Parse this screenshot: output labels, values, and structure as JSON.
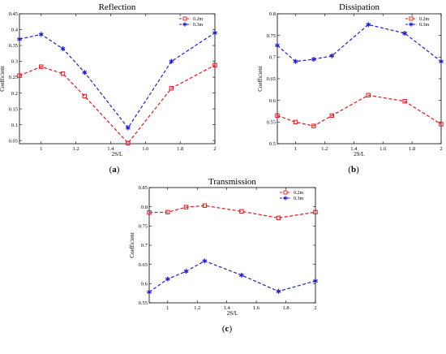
{
  "chart_data": [
    {
      "type": "line",
      "panel_label": "a",
      "title": "Reflection",
      "xlabel": "2S/L",
      "ylabel": "Coefficient",
      "xlim": [
        0.875,
        2.0
      ],
      "ylim": [
        0.04,
        0.45
      ],
      "xticks": [
        1,
        1.2,
        1.4,
        1.6,
        1.8,
        2
      ],
      "xtick_labels": [
        "1",
        "1.2",
        "1.4",
        "1.6",
        "1.8",
        "2"
      ],
      "yticks": [
        0.05,
        0.1,
        0.15,
        0.2,
        0.25,
        0.3,
        0.35,
        0.4,
        0.45
      ],
      "ytick_labels": [
        "0.05",
        "0.1",
        "0.15",
        "0.2",
        "0.25",
        "0.3",
        "0.35",
        "0.4",
        "0.45"
      ],
      "legend_position": "top-right",
      "grid": false,
      "series": [
        {
          "name": "0.2m",
          "color": "#e8141b",
          "marker": "square",
          "x": [
            0.875,
            1.0,
            1.125,
            1.25,
            1.5,
            1.75,
            2.0
          ],
          "y": [
            0.255,
            0.283,
            0.261,
            0.19,
            0.042,
            0.215,
            0.288
          ]
        },
        {
          "name": "0.3m",
          "color": "#1f1fd6",
          "marker": "star",
          "x": [
            0.875,
            1.0,
            1.125,
            1.25,
            1.5,
            1.75,
            2.0
          ],
          "y": [
            0.37,
            0.385,
            0.34,
            0.265,
            0.09,
            0.3,
            0.39
          ]
        }
      ]
    },
    {
      "type": "line",
      "panel_label": "b",
      "title": "Dissipation",
      "xlabel": "2S/L",
      "ylabel": "Coefficient",
      "xlim": [
        0.875,
        2.0
      ],
      "ylim": [
        0.5,
        0.8
      ],
      "xticks": [
        1,
        1.2,
        1.4,
        1.6,
        1.8,
        2
      ],
      "xtick_labels": [
        "1",
        "1.2",
        "1.4",
        "1.6",
        "1.8",
        "2"
      ],
      "yticks": [
        0.5,
        0.55,
        0.6,
        0.65,
        0.7,
        0.75,
        0.8
      ],
      "ytick_labels": [
        "0.5",
        "0.55",
        "0.6",
        "0.65",
        "0.7",
        "0.75",
        "0.8"
      ],
      "legend_position": "top-right",
      "grid": false,
      "series": [
        {
          "name": "0.2m",
          "color": "#e8141b",
          "marker": "square",
          "x": [
            0.875,
            1.0,
            1.125,
            1.25,
            1.5,
            1.75,
            2.0
          ],
          "y": [
            0.565,
            0.55,
            0.541,
            0.565,
            0.612,
            0.598,
            0.545
          ]
        },
        {
          "name": "0.3m",
          "color": "#1f1fd6",
          "marker": "star",
          "x": [
            0.875,
            1.0,
            1.125,
            1.25,
            1.5,
            1.75,
            2.0
          ],
          "y": [
            0.727,
            0.69,
            0.695,
            0.703,
            0.775,
            0.755,
            0.69
          ]
        }
      ]
    },
    {
      "type": "line",
      "panel_label": "c",
      "title": "Transmission",
      "xlabel": "2S/L",
      "ylabel": "Coefficient",
      "xlim": [
        0.875,
        2.0
      ],
      "ylim": [
        0.55,
        0.85
      ],
      "xticks": [
        1,
        1.2,
        1.4,
        1.6,
        1.8,
        2
      ],
      "xtick_labels": [
        "1",
        "1.2",
        "1.4",
        "1.6",
        "1.8",
        "2"
      ],
      "yticks": [
        0.55,
        0.6,
        0.65,
        0.7,
        0.75,
        0.8,
        0.85
      ],
      "ytick_labels": [
        "0.55",
        "0.6",
        "0.65",
        "0.7",
        "0.75",
        "0.8",
        "0.85"
      ],
      "legend_position": "top-right",
      "grid": false,
      "series": [
        {
          "name": "0.2m",
          "color": "#e8141b",
          "marker": "square",
          "x": [
            0.875,
            1.0,
            1.125,
            1.25,
            1.5,
            1.75,
            2.0
          ],
          "y": [
            0.785,
            0.786,
            0.799,
            0.803,
            0.788,
            0.771,
            0.786
          ]
        },
        {
          "name": "0.3m",
          "color": "#1f1fd6",
          "marker": "star",
          "x": [
            0.875,
            1.0,
            1.125,
            1.25,
            1.5,
            1.75,
            2.0
          ],
          "y": [
            0.578,
            0.612,
            0.632,
            0.659,
            0.622,
            0.58,
            0.607
          ]
        }
      ]
    }
  ]
}
